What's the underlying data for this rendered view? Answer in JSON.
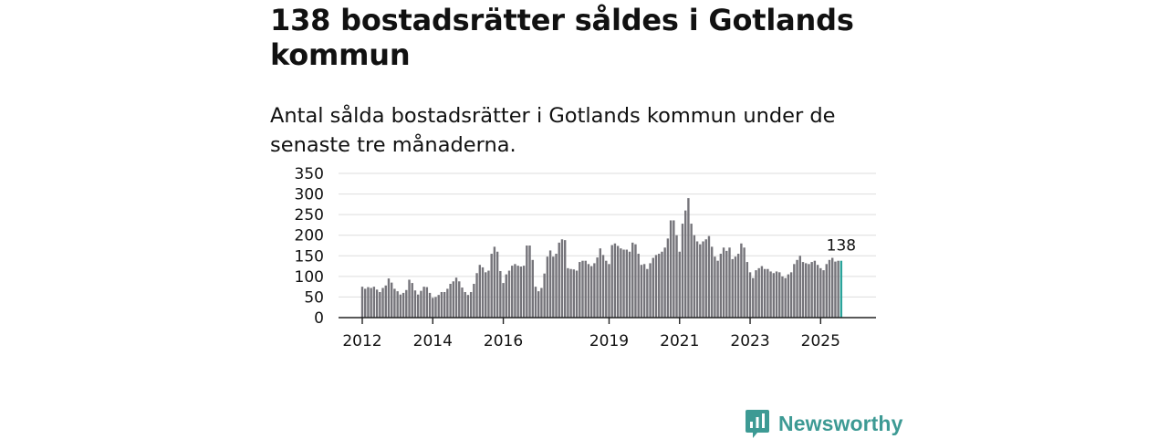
{
  "header": {
    "title": "138 bostadsrätter såldes i Gotlands kommun",
    "subtitle": "Antal sålda bostadsrätter i Gotlands kommun under de senaste tre månaderna."
  },
  "brand": {
    "name": "Newsworthy",
    "icon": "newsworthy-logo-icon",
    "color": "#3d9a94"
  },
  "colors": {
    "bar": "#75747a",
    "highlight": "#2ba39b",
    "grid": "#dddddd",
    "axis": "#222222",
    "text": "#111111"
  },
  "chart_data": {
    "type": "bar",
    "title": "",
    "xlabel": "",
    "ylabel": "",
    "x_start": "2012-01",
    "x_end": "2025-08",
    "ylim": [
      0,
      350
    ],
    "yticks": [
      0,
      50,
      100,
      150,
      200,
      250,
      300,
      350
    ],
    "xticks": [
      {
        "x": "2012-01",
        "label": "2012"
      },
      {
        "x": "2014-01",
        "label": "2014"
      },
      {
        "x": "2016-01",
        "label": "2016"
      },
      {
        "x": "2019-01",
        "label": "2019"
      },
      {
        "x": "2021-01",
        "label": "2021"
      },
      {
        "x": "2023-01",
        "label": "2023"
      },
      {
        "x": "2025-01",
        "label": "2025"
      }
    ],
    "grid": true,
    "highlight_last": true,
    "last_label": "138",
    "values": [
      75,
      70,
      74,
      72,
      75,
      68,
      62,
      72,
      78,
      95,
      85,
      70,
      64,
      56,
      60,
      67,
      92,
      84,
      66,
      56,
      65,
      75,
      74,
      60,
      48,
      50,
      55,
      62,
      62,
      70,
      82,
      88,
      97,
      88,
      73,
      62,
      55,
      62,
      82,
      108,
      128,
      122,
      110,
      114,
      155,
      172,
      160,
      113,
      84,
      105,
      114,
      126,
      130,
      126,
      124,
      126,
      175,
      175,
      140,
      75,
      64,
      72,
      107,
      148,
      163,
      148,
      155,
      182,
      190,
      188,
      120,
      118,
      117,
      114,
      135,
      138,
      138,
      130,
      125,
      132,
      146,
      168,
      152,
      138,
      130,
      176,
      180,
      174,
      168,
      165,
      165,
      160,
      182,
      178,
      155,
      128,
      130,
      118,
      132,
      145,
      152,
      155,
      160,
      170,
      192,
      236,
      236,
      200,
      160,
      228,
      260,
      290,
      228,
      200,
      185,
      178,
      185,
      190,
      198,
      172,
      148,
      138,
      155,
      170,
      162,
      170,
      142,
      148,
      155,
      180,
      170,
      135,
      110,
      96,
      115,
      120,
      125,
      118,
      118,
      112,
      108,
      112,
      110,
      100,
      96,
      105,
      110,
      130,
      140,
      150,
      135,
      132,
      130,
      135,
      138,
      128,
      120,
      115,
      130,
      140,
      145,
      136,
      138,
      138
    ]
  }
}
